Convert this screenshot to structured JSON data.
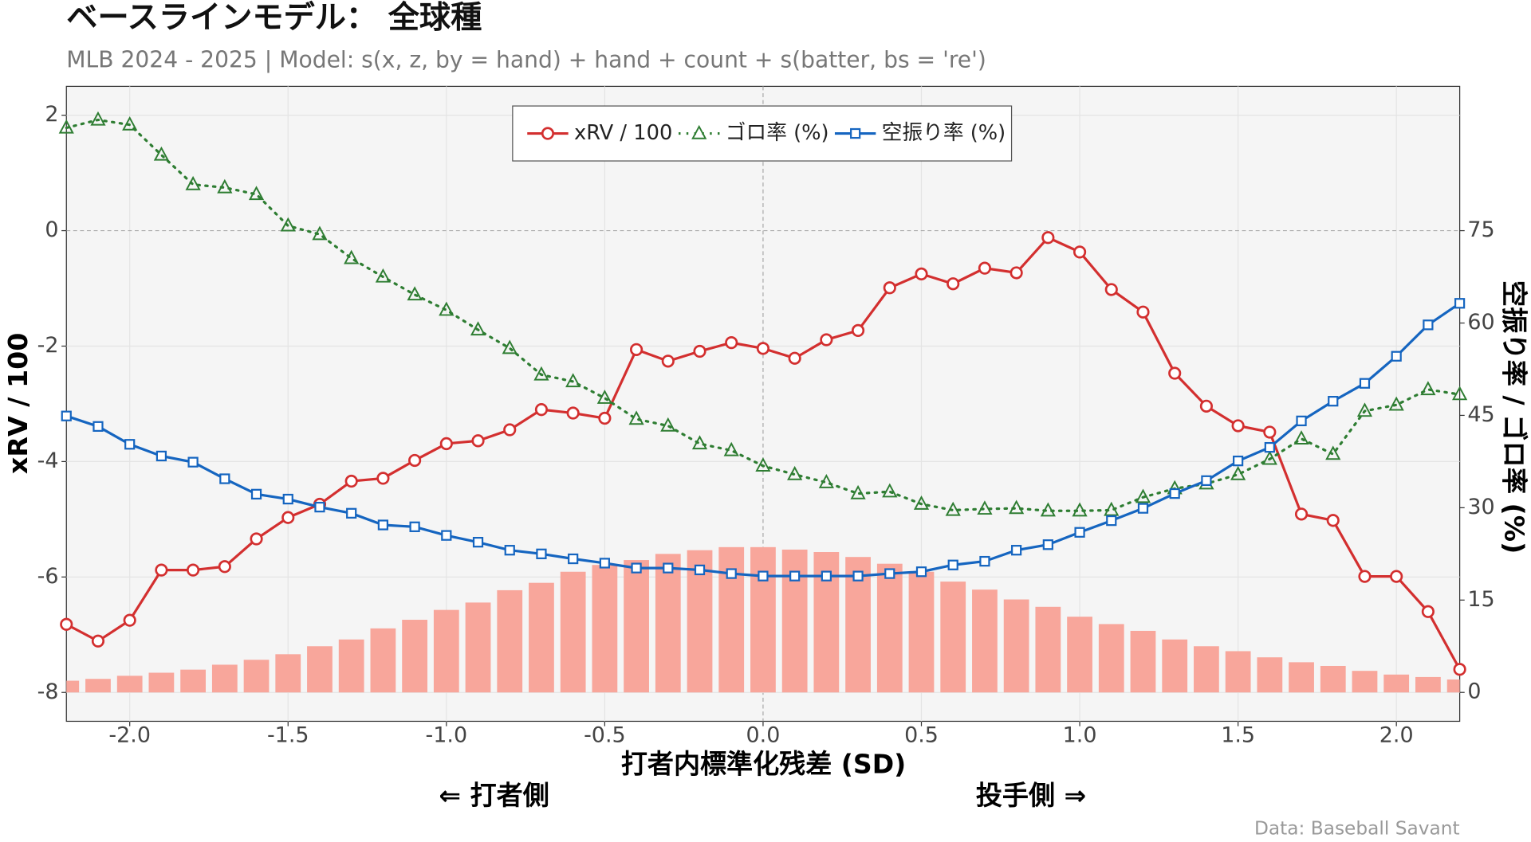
{
  "chart_data": {
    "type": "line",
    "title": "ベースラインモデル： 全球種",
    "subtitle": "MLB 2024 - 2025 | Model: s(x, z, by = hand) + hand + count + s(batter, bs = 're')",
    "x_label": "打者内標準化残差 (SD)",
    "y_label": "xRV / 100",
    "y2_label": "空振り率 / ゴロ率 (%)",
    "annotations": [
      "⇐ 打者側",
      "投手側 ⇒"
    ],
    "caption": "Data: Baseball Savant",
    "x": [
      -2.2,
      -2.1,
      -2.0,
      -1.9,
      -1.8,
      -1.7,
      -1.6,
      -1.5,
      -1.4,
      -1.3,
      -1.2,
      -1.1,
      -1.0,
      -0.9,
      -0.8,
      -0.7,
      -0.6,
      -0.5,
      -0.4,
      -0.3,
      -0.2,
      -0.1,
      0.0,
      0.1,
      0.2,
      0.3,
      0.4,
      0.5,
      0.6,
      0.7,
      0.8,
      0.9,
      1.0,
      1.1,
      1.2,
      1.3,
      1.4,
      1.5,
      1.6,
      1.7,
      1.8,
      1.9,
      2.0,
      2.1,
      2.2
    ],
    "xlim": [
      -2.2,
      2.2
    ],
    "xticks": [
      {
        "value": -2.0,
        "label": "-2.0"
      },
      {
        "value": -1.5,
        "label": "-1.5"
      },
      {
        "value": -1.0,
        "label": "-1.0"
      },
      {
        "value": -0.5,
        "label": "-0.5"
      },
      {
        "value": 0.0,
        "label": "0.0"
      },
      {
        "value": 0.5,
        "label": "0.5"
      },
      {
        "value": 1.0,
        "label": "1.0"
      },
      {
        "value": 1.5,
        "label": "1.5"
      },
      {
        "value": 2.0,
        "label": "2.0"
      }
    ],
    "ylim": [
      -8.5,
      2.5
    ],
    "yticks": [
      2,
      0,
      -2,
      -4,
      -6,
      -8
    ],
    "y2lim": [
      -4.69,
      98.44
    ],
    "y2ticks": [
      0,
      15,
      30,
      45,
      60,
      75
    ],
    "grid": true,
    "legend": "top",
    "bars": {
      "axis": "y2",
      "color": "#f8a69b",
      "values": [
        1.9,
        2.2,
        2.7,
        3.2,
        3.7,
        4.5,
        5.3,
        6.2,
        7.5,
        8.6,
        10.4,
        11.8,
        13.4,
        14.6,
        16.6,
        17.8,
        19.6,
        20.7,
        21.5,
        22.5,
        23.1,
        23.6,
        23.6,
        23.2,
        22.8,
        22.0,
        20.9,
        19.6,
        18.0,
        16.7,
        15.1,
        13.9,
        12.3,
        11.1,
        10.0,
        8.6,
        7.5,
        6.7,
        5.7,
        4.9,
        4.3,
        3.5,
        2.9,
        2.5,
        2.1
      ]
    },
    "series": [
      {
        "name": "xRV / 100",
        "color": "#d32f2f",
        "marker": "circle",
        "dash": "solid",
        "values": [
          -6.82,
          -7.11,
          -6.75,
          -5.88,
          -5.88,
          -5.82,
          -5.34,
          -4.97,
          -4.74,
          -4.34,
          -4.29,
          -3.98,
          -3.69,
          -3.64,
          -3.45,
          -3.1,
          -3.16,
          -3.25,
          -2.06,
          -2.26,
          -2.09,
          -1.94,
          -2.04,
          -2.21,
          -1.89,
          -1.73,
          -0.99,
          -0.75,
          -0.92,
          -0.65,
          -0.73,
          -0.12,
          -0.37,
          -1.02,
          -1.41,
          -2.47,
          -3.04,
          -3.38,
          -3.49,
          -4.91,
          -5.02,
          -5.99,
          -5.99,
          -6.6,
          -7.6
        ]
      },
      {
        "name": "ゴロ率 (%)",
        "color": "#2e7d32",
        "marker": "triangle",
        "dash": "dotted",
        "axis": "y2",
        "values": [
          91.7,
          93.0,
          92.2,
          87.3,
          82.5,
          82.0,
          80.9,
          75.8,
          74.4,
          70.5,
          67.5,
          64.6,
          62.1,
          58.9,
          55.9,
          51.6,
          50.5,
          47.8,
          44.4,
          43.3,
          40.4,
          39.3,
          36.8,
          35.4,
          34.1,
          32.3,
          32.6,
          30.6,
          29.6,
          29.8,
          29.9,
          29.5,
          29.5,
          29.6,
          31.7,
          33.1,
          33.9,
          35.4,
          37.9,
          41.2,
          38.7,
          45.7,
          46.7,
          49.2,
          48.4
        ]
      },
      {
        "name": "空振り率 (%)",
        "color": "#1565c0",
        "marker": "square",
        "dash": "solid",
        "axis": "y2",
        "values": [
          44.9,
          43.2,
          40.3,
          38.4,
          37.4,
          34.7,
          32.2,
          31.4,
          30.1,
          29.1,
          27.2,
          26.9,
          25.5,
          24.4,
          23.1,
          22.5,
          21.7,
          21.0,
          20.2,
          20.2,
          19.9,
          19.3,
          18.9,
          18.9,
          18.9,
          18.9,
          19.3,
          19.6,
          20.7,
          21.3,
          23.1,
          24.0,
          26.0,
          27.9,
          29.9,
          32.3,
          34.4,
          37.6,
          39.8,
          44.1,
          47.3,
          50.2,
          54.6,
          59.7,
          63.2
        ]
      }
    ]
  }
}
